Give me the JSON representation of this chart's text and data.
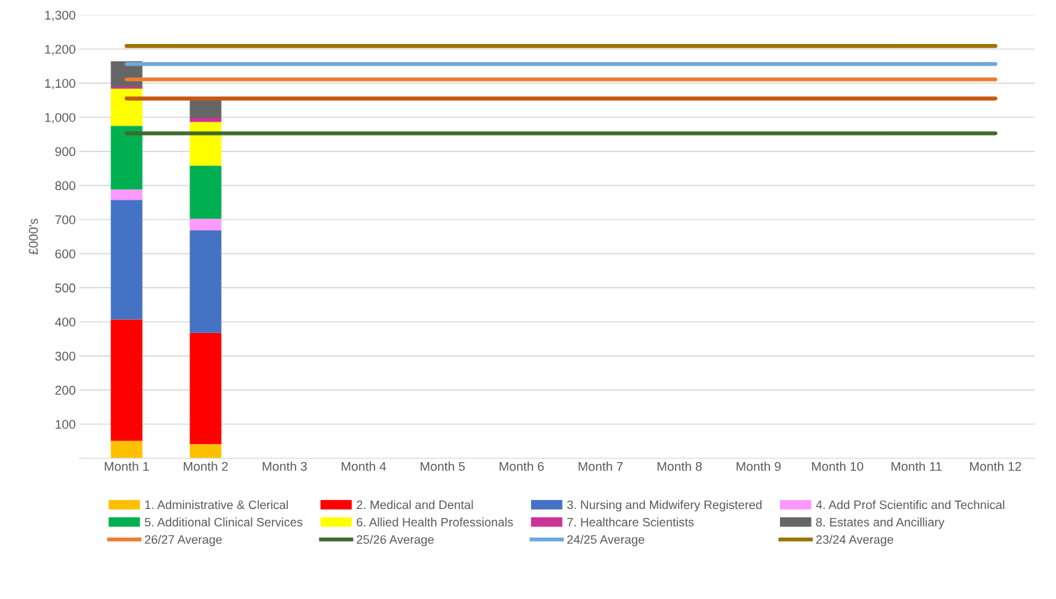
{
  "chart_data": {
    "type": "bar",
    "stacked": true,
    "ylabel": "£000's",
    "categories": [
      "Month 1",
      "Month 2",
      "Month 3",
      "Month 4",
      "Month 5",
      "Month 6",
      "Month 7",
      "Month 8",
      "Month 9",
      "Month 10",
      "Month 11",
      "Month 12"
    ],
    "series": [
      {
        "name": "1. Administrative & Clerical",
        "color": "#ffc000",
        "values": [
          51,
          41,
          null,
          null,
          null,
          null,
          null,
          null,
          null,
          null,
          null,
          null
        ]
      },
      {
        "name": "2. Medical and Dental",
        "color": "#ff0000",
        "values": [
          356,
          327,
          null,
          null,
          null,
          null,
          null,
          null,
          null,
          null,
          null,
          null
        ]
      },
      {
        "name": "3. Nursing and Midwifery Registered",
        "color": "#4472c4",
        "values": [
          351,
          301,
          null,
          null,
          null,
          null,
          null,
          null,
          null,
          null,
          null,
          null
        ]
      },
      {
        "name": "4. Add Prof Scientific and Technical",
        "color": "#ff99ff",
        "values": [
          30,
          33,
          null,
          null,
          null,
          null,
          null,
          null,
          null,
          null,
          null,
          null
        ]
      },
      {
        "name": "5. Additional Clinical Services",
        "color": "#00b050",
        "values": [
          187,
          156,
          null,
          null,
          null,
          null,
          null,
          null,
          null,
          null,
          null,
          null
        ]
      },
      {
        "name": "6. Allied Health Professionals",
        "color": "#ffff00",
        "values": [
          109,
          128,
          null,
          null,
          null,
          null,
          null,
          null,
          null,
          null,
          null,
          null
        ]
      },
      {
        "name": "7. Healthcare Scientists",
        "color": "#cc3399",
        "values": [
          6,
          12,
          null,
          null,
          null,
          null,
          null,
          null,
          null,
          null,
          null,
          null
        ]
      },
      {
        "name": "8. Estates and Ancilliary",
        "color": "#666666",
        "values": [
          74,
          51,
          null,
          null,
          null,
          null,
          null,
          null,
          null,
          null,
          null,
          null
        ]
      },
      {
        "name": "26/27 Average",
        "type": "line",
        "color": "#ed7d31",
        "values": [
          1111,
          1111,
          1111,
          1111,
          1111,
          1111,
          1111,
          1111,
          1111,
          1111,
          1111,
          1111
        ]
      },
      {
        "name": "25/26 Average",
        "type": "line",
        "color": "#3f6b2a",
        "values": [
          953,
          953,
          953,
          953,
          953,
          953,
          953,
          953,
          953,
          953,
          953,
          953
        ]
      },
      {
        "name": "24/25 Average",
        "type": "line",
        "color": "#6fa8dc",
        "values": [
          1156,
          1156,
          1156,
          1156,
          1156,
          1156,
          1156,
          1156,
          1156,
          1156,
          1156,
          1156
        ]
      },
      {
        "name": "23/24 Average",
        "type": "line",
        "color": "#9c7400",
        "values": [
          1209,
          1209,
          1209,
          1209,
          1209,
          1209,
          1209,
          1209,
          1209,
          1209,
          1209,
          1209
        ]
      },
      {
        "type": "line",
        "color": "#c55a11",
        "values": [
          1055,
          1055,
          1055,
          1055,
          1055,
          1055,
          1055,
          1055,
          1055,
          1055,
          1055,
          1055
        ]
      }
    ],
    "ylim": [
      0,
      1300
    ],
    "yticks": [
      {
        "value": 100,
        "label": "100"
      },
      {
        "value": 200,
        "label": "200"
      },
      {
        "value": 300,
        "label": "300"
      },
      {
        "value": 400,
        "label": "400"
      },
      {
        "value": 500,
        "label": "500"
      },
      {
        "value": 600,
        "label": "600"
      },
      {
        "value": 700,
        "label": "700"
      },
      {
        "value": 800,
        "label": "800"
      },
      {
        "value": 900,
        "label": "900"
      },
      {
        "value": 1000,
        "label": "1,000"
      },
      {
        "value": 1100,
        "label": "1,100"
      },
      {
        "value": 1200,
        "label": "1,200"
      },
      {
        "value": 1300,
        "label": "1,300"
      }
    ],
    "grid": "y",
    "legend": "bottom",
    "marker": "none",
    "line_style": "solid"
  }
}
